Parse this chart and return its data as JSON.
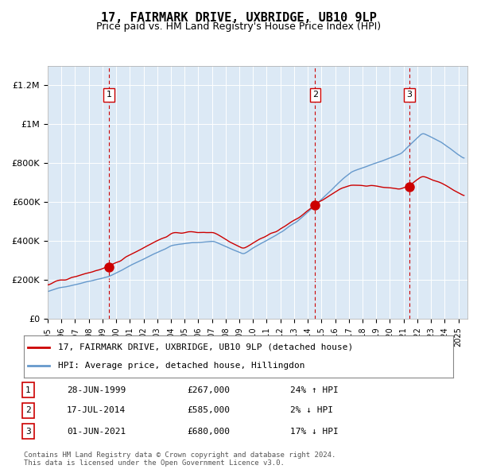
{
  "title": "17, FAIRMARK DRIVE, UXBRIDGE, UB10 9LP",
  "subtitle": "Price paid vs. HM Land Registry's House Price Index (HPI)",
  "ylabel_ticks": [
    "£0",
    "£200K",
    "£400K",
    "£600K",
    "£800K",
    "£1M",
    "£1.2M"
  ],
  "ytick_values": [
    0,
    200000,
    400000,
    600000,
    800000,
    1000000,
    1200000
  ],
  "ylim": [
    0,
    1300000
  ],
  "x_start_year": 1995,
  "x_end_year": 2025,
  "sale_dates": [
    "1999-06-28",
    "2014-07-17",
    "2021-06-01"
  ],
  "sale_prices": [
    267000,
    585000,
    680000
  ],
  "sale_labels": [
    "1",
    "2",
    "3"
  ],
  "sale_info": [
    {
      "label": "1",
      "date": "28-JUN-1999",
      "price": "£267,000",
      "change": "24% ↑ HPI"
    },
    {
      "label": "2",
      "date": "17-JUL-2014",
      "price": "£585,000",
      "change": "2% ↓ HPI"
    },
    {
      "label": "3",
      "date": "01-JUN-2021",
      "price": "£680,000",
      "change": "17% ↓ HPI"
    }
  ],
  "legend_entries": [
    "17, FAIRMARK DRIVE, UXBRIDGE, UB10 9LP (detached house)",
    "HPI: Average price, detached house, Hillingdon"
  ],
  "price_line_color": "#cc0000",
  "hpi_line_color": "#6699cc",
  "vline_color": "#cc0000",
  "dot_color": "#cc0000",
  "background_color": "#dce9f5",
  "plot_bg_color": "#dce9f5",
  "footer": "Contains HM Land Registry data © Crown copyright and database right 2024.\nThis data is licensed under the Open Government Licence v3.0.",
  "title_fontsize": 11,
  "subtitle_fontsize": 10
}
